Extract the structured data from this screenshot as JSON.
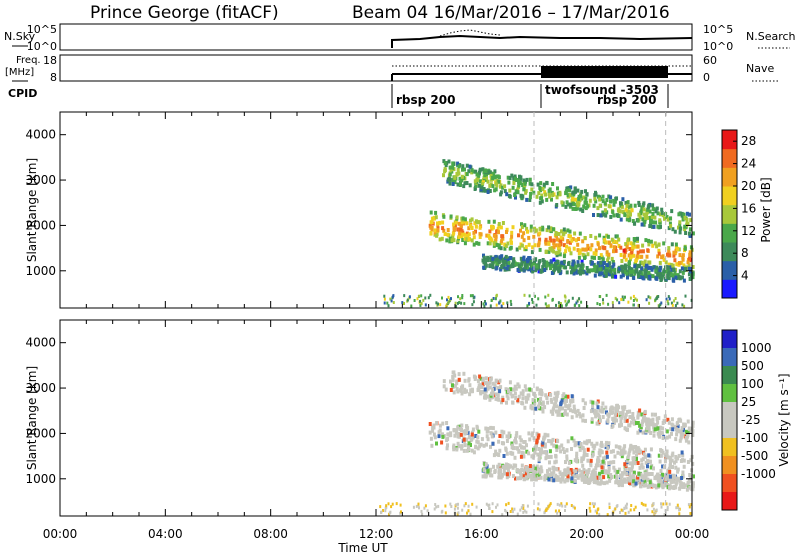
{
  "header": {
    "station": "Prince George (fitACF)",
    "beam_dates": "Beam 04  16/Mar/2016 – 17/Mar/2016"
  },
  "top_panels": {
    "nsky_label": "N.Sky",
    "nsky_ticks": [
      "10^5",
      "10^0"
    ],
    "nsearch_ticks": [
      "10^5",
      "10^0"
    ],
    "nsearch_label": "N.Search",
    "freq_label_1": "Freq.",
    "freq_label_2": "[MHz]",
    "freq_ticks": [
      "18",
      "8"
    ],
    "nave_ticks": [
      "60",
      "0"
    ],
    "nave_label": "Nave",
    "cpid_label": "CPID",
    "cpid_entries": [
      "rbsp 200",
      "twofsound -3503",
      "rbsp 200"
    ]
  },
  "axes": {
    "xlabel": "Time UT",
    "ylabel": "Slant Range [km]",
    "x_ticks": [
      "00:00",
      "04:00",
      "08:00",
      "12:00",
      "16:00",
      "20:00",
      "00:00"
    ],
    "y_ticks": [
      "1000",
      "2000",
      "3000",
      "4000"
    ]
  },
  "colorbars": {
    "power": {
      "label": "Power [dB]",
      "ticks": [
        "4",
        "8",
        "12",
        "16",
        "20",
        "24",
        "28"
      ],
      "colors": [
        "#1a1aff",
        "#2a5fa8",
        "#3d8a5a",
        "#4aa84a",
        "#a8c83a",
        "#f0d020",
        "#f0a020",
        "#f06a20",
        "#e81818"
      ]
    },
    "velocity": {
      "label": "Velocity [m s⁻¹]",
      "ticks": [
        "1000",
        "500",
        "100",
        "25",
        "-25",
        "-100",
        "-500",
        "-1000"
      ],
      "colors": [
        "#2020c8",
        "#3a6ab8",
        "#3a8a50",
        "#60c040",
        "#c8c8c0",
        "#c8c8c0",
        "#f0c020",
        "#f09020",
        "#f05020",
        "#e81818"
      ]
    }
  },
  "chart_data": {
    "type": "heatmap",
    "title": "Prince George (fitACF)  Beam 04  16/Mar/2016 – 17/Mar/2016",
    "xlabel": "Time UT",
    "ylabel": "Slant Range [km]",
    "x_range_hours": [
      0,
      24
    ],
    "y_range_km": [
      180,
      4500
    ],
    "data_start_hour": 12,
    "cpid_intervals": [
      {
        "name": "rbsp 200",
        "start": 12,
        "end": 18
      },
      {
        "name": "twofsound -3503",
        "start": 18,
        "end": 23
      },
      {
        "name": "rbsp 200",
        "start": 23,
        "end": 24
      }
    ],
    "scatter_bands": [
      {
        "name": "main band",
        "t_start": 14.0,
        "r_start": 2000,
        "t_end": 24.0,
        "r_end": 1250,
        "width_km": 300,
        "power_db": 26,
        "velocity": 0
      },
      {
        "name": "upper band",
        "t_start": 14.5,
        "r_start": 3200,
        "t_end": 24.0,
        "r_end": 2000,
        "width_km": 250,
        "power_db": 16,
        "velocity": 0
      },
      {
        "name": "lower band",
        "t_start": 16.0,
        "r_start": 1200,
        "t_end": 24.0,
        "r_end": 900,
        "width_km": 150,
        "power_db": 10,
        "velocity": 0
      }
    ],
    "power_scale_db": [
      0,
      30
    ],
    "velocity_scale_ms": [
      -1000,
      1000
    ]
  }
}
